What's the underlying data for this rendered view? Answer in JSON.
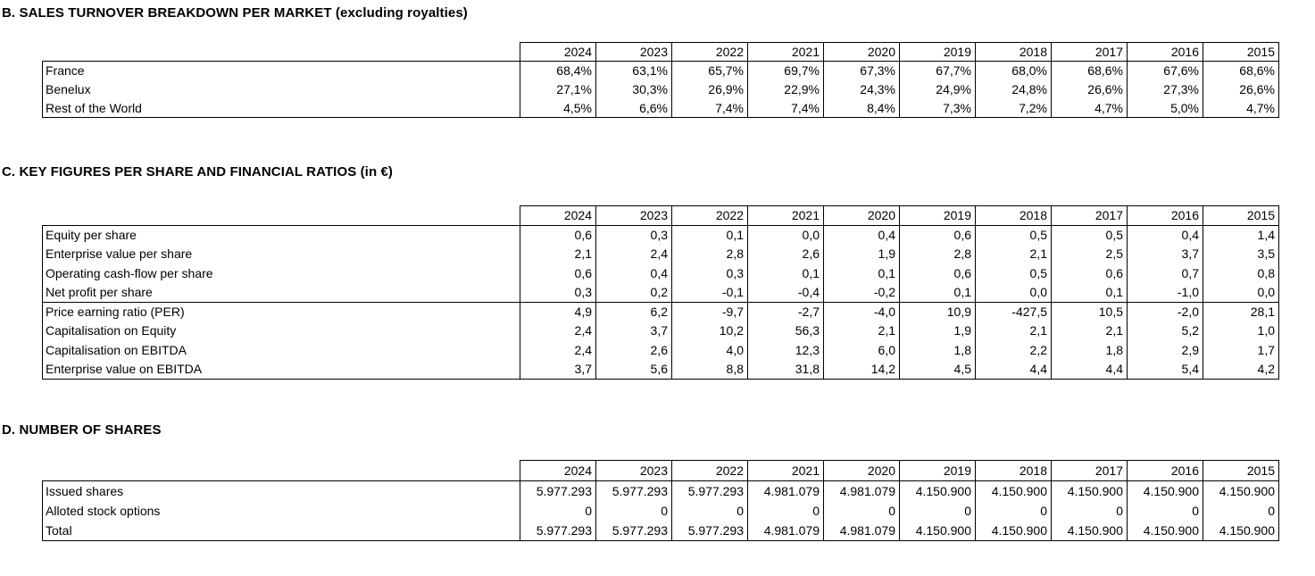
{
  "sections": [
    {
      "id": "B",
      "title": "B. SALES TURNOVER BREAKDOWN PER MARKET (excluding royalties)",
      "years": [
        "2024",
        "2023",
        "2022",
        "2021",
        "2020",
        "2019",
        "2018",
        "2017",
        "2016",
        "2015"
      ],
      "rows": [
        {
          "label": "France",
          "values": [
            "68,4%",
            "63,1%",
            "65,7%",
            "69,7%",
            "67,3%",
            "67,7%",
            "68,0%",
            "68,6%",
            "67,6%",
            "68,6%"
          ]
        },
        {
          "label": "Benelux",
          "values": [
            "27,1%",
            "30,3%",
            "26,9%",
            "22,9%",
            "24,3%",
            "24,9%",
            "24,8%",
            "26,6%",
            "27,3%",
            "26,6%"
          ]
        },
        {
          "label": "Rest of the World",
          "values": [
            "4,5%",
            "6,6%",
            "7,4%",
            "7,4%",
            "8,4%",
            "7,3%",
            "7,2%",
            "4,7%",
            "5,0%",
            "4,7%"
          ]
        }
      ]
    },
    {
      "id": "C",
      "title": "C. KEY FIGURES PER SHARE AND FINANCIAL RATIOS (in €)",
      "years": [
        "2024",
        "2023",
        "2022",
        "2021",
        "2020",
        "2019",
        "2018",
        "2017",
        "2016",
        "2015"
      ],
      "rows": [
        {
          "label": "Equity per share",
          "values": [
            "0,6",
            "0,3",
            "0,1",
            "0,0",
            "0,4",
            "0,6",
            "0,5",
            "0,5",
            "0,4",
            "1,4"
          ]
        },
        {
          "label": "Enterprise value per share",
          "values": [
            "2,1",
            "2,4",
            "2,8",
            "2,6",
            "1,9",
            "2,8",
            "2,1",
            "2,5",
            "3,7",
            "3,5"
          ]
        },
        {
          "label": "Operating cash-flow per share",
          "values": [
            "0,6",
            "0,4",
            "0,3",
            "0,1",
            "0,1",
            "0,6",
            "0,5",
            "0,6",
            "0,7",
            "0,8"
          ]
        },
        {
          "label": "Net profit per share",
          "values": [
            "0,3",
            "0,2",
            "-0,1",
            "-0,4",
            "-0,2",
            "0,1",
            "0,0",
            "0,1",
            "-1,0",
            "0,0"
          ]
        },
        {
          "label": "Price earning ratio (PER)",
          "values": [
            "4,9",
            "6,2",
            "-9,7",
            "-2,7",
            "-4,0",
            "10,9",
            "-427,5",
            "10,5",
            "-2,0",
            "28,1"
          ],
          "group_start": true
        },
        {
          "label": "Capitalisation on Equity",
          "values": [
            "2,4",
            "3,7",
            "10,2",
            "56,3",
            "2,1",
            "1,9",
            "2,1",
            "2,1",
            "5,2",
            "1,0"
          ]
        },
        {
          "label": "Capitalisation on EBITDA",
          "values": [
            "2,4",
            "2,6",
            "4,0",
            "12,3",
            "6,0",
            "1,8",
            "2,2",
            "1,8",
            "2,9",
            "1,7"
          ]
        },
        {
          "label": "Enterprise value on EBITDA",
          "values": [
            "3,7",
            "5,6",
            "8,8",
            "31,8",
            "14,2",
            "4,5",
            "4,4",
            "4,4",
            "5,4",
            "4,2"
          ]
        }
      ]
    },
    {
      "id": "D",
      "title": "D. NUMBER OF SHARES",
      "years": [
        "2024",
        "2023",
        "2022",
        "2021",
        "2020",
        "2019",
        "2018",
        "2017",
        "2016",
        "2015"
      ],
      "rows": [
        {
          "label": "Issued shares",
          "values": [
            "5.977.293",
            "5.977.293",
            "5.977.293",
            "4.981.079",
            "4.981.079",
            "4.150.900",
            "4.150.900",
            "4.150.900",
            "4.150.900",
            "4.150.900"
          ]
        },
        {
          "label": "Alloted stock options",
          "values": [
            "0",
            "0",
            "0",
            "0",
            "0",
            "0",
            "0",
            "0",
            "0",
            "0"
          ]
        },
        {
          "label": "Total",
          "values": [
            "5.977.293",
            "5.977.293",
            "5.977.293",
            "4.981.079",
            "4.981.079",
            "4.150.900",
            "4.150.900",
            "4.150.900",
            "4.150.900",
            "4.150.900"
          ]
        }
      ]
    }
  ],
  "layout_colors": {
    "text": "#000000",
    "background": "#ffffff",
    "border": "#000000"
  }
}
